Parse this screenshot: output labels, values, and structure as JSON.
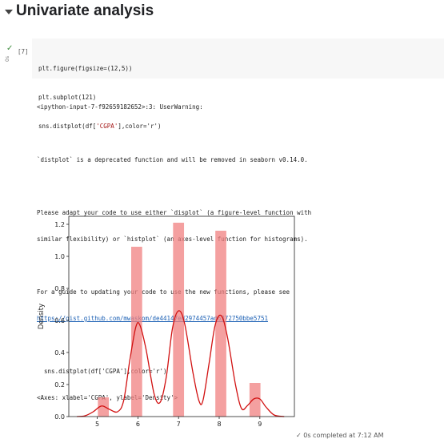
{
  "section": {
    "title": "Univariate analysis"
  },
  "cell": {
    "execution_count": "[7]",
    "exec_time": "0s",
    "code_lines": [
      {
        "pre": "plt.figure(figsize=(12,5))",
        "str": "",
        "post": ""
      },
      {
        "pre": "plt.subplot(121)",
        "str": "",
        "post": ""
      },
      {
        "pre": "sns.distplot(df[",
        "str": "'CGPA'",
        "post": "],color='r')"
      }
    ]
  },
  "output": {
    "warning_header": "<ipython-input-7-f92659182652>:3: UserWarning:",
    "deprecation": "`distplot` is a deprecated function and will be removed in seaborn v0.14.0.",
    "adapt_1": "Please adapt your code to use either `displot` (a figure-level function with",
    "adapt_2": "similar flexibility) or `histplot` (an axes-level function for histograms).",
    "guide": "For a guide to updating your code to use the new functions, please see",
    "guide_link": "https://gist.github.com/mwaskom/de44147ed2974457ad6372750bbe5751",
    "code_echo": "  sns.distplot(df['CGPA'],color='r')",
    "repr": "<Axes: xlabel='CGPA', ylabel='Density'>"
  },
  "chart_data": {
    "type": "bar",
    "ylabel": "Density",
    "xlabel": "",
    "xlim": [
      4.3,
      9.85
    ],
    "ylim": [
      0,
      1.25
    ],
    "xticks": [
      "5",
      "6",
      "7",
      "8",
      "9"
    ],
    "yticks": [
      "0.0",
      "0.2",
      "0.4",
      "0.6",
      "0.8",
      "1.0",
      "1.2"
    ],
    "bar_width": 0.27,
    "bars": [
      {
        "x": 5.15,
        "value": 0.12
      },
      {
        "x": 5.97,
        "value": 1.06
      },
      {
        "x": 7.0,
        "value": 1.21
      },
      {
        "x": 8.04,
        "value": 1.16
      },
      {
        "x": 8.88,
        "value": 0.21
      }
    ],
    "bar_color": "#f08080",
    "kde_color": "#d11010",
    "kde": [
      [
        4.5,
        0.0
      ],
      [
        4.7,
        0.005
      ],
      [
        4.9,
        0.03
      ],
      [
        5.05,
        0.06
      ],
      [
        5.15,
        0.065
      ],
      [
        5.3,
        0.045
      ],
      [
        5.5,
        0.03
      ],
      [
        5.65,
        0.1
      ],
      [
        5.8,
        0.35
      ],
      [
        5.95,
        0.56
      ],
      [
        6.05,
        0.57
      ],
      [
        6.2,
        0.42
      ],
      [
        6.4,
        0.14
      ],
      [
        6.55,
        0.09
      ],
      [
        6.7,
        0.25
      ],
      [
        6.85,
        0.55
      ],
      [
        7.0,
        0.66
      ],
      [
        7.15,
        0.58
      ],
      [
        7.35,
        0.28
      ],
      [
        7.5,
        0.1
      ],
      [
        7.6,
        0.1
      ],
      [
        7.75,
        0.33
      ],
      [
        7.9,
        0.57
      ],
      [
        8.05,
        0.63
      ],
      [
        8.2,
        0.5
      ],
      [
        8.4,
        0.2
      ],
      [
        8.55,
        0.05
      ],
      [
        8.7,
        0.07
      ],
      [
        8.85,
        0.11
      ],
      [
        9.0,
        0.11
      ],
      [
        9.15,
        0.06
      ],
      [
        9.35,
        0.01
      ],
      [
        9.6,
        0.0
      ]
    ]
  },
  "status": {
    "text": "✓ 0s   completed at 7:12 AM"
  }
}
